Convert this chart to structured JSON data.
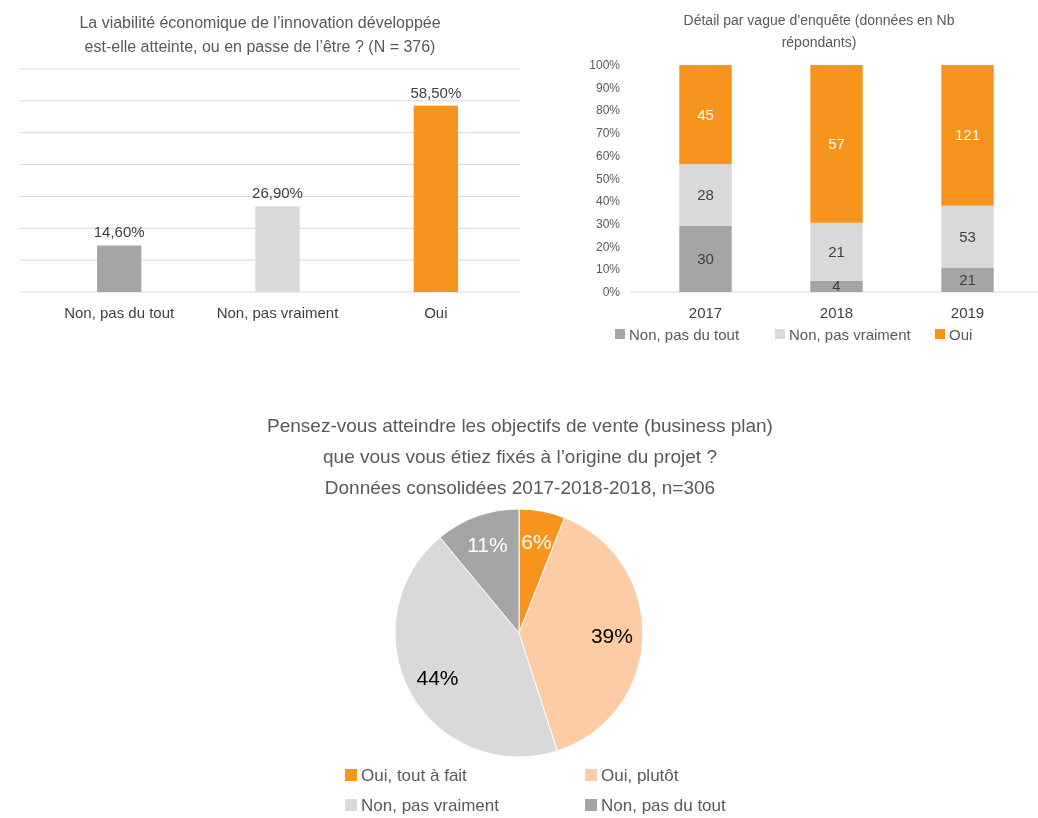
{
  "chart_data": [
    {
      "type": "bar",
      "title": "La viabilité économique de l’innovation développée\nest-elle atteinte, ou en passe de l’être ? (N = 376)",
      "categories": [
        "Non, pas du tout",
        "Non, pas vraiment",
        "Oui"
      ],
      "values": [
        14.6,
        26.9,
        58.5
      ],
      "colors": [
        "#a5a5a5",
        "#d9d9d9",
        "#f7941d"
      ],
      "value_labels": [
        "14,60%",
        "26,90%",
        "58,50%"
      ],
      "ylim": [
        0,
        70
      ],
      "yticks": [
        {
          "value": 0,
          "label": null
        },
        {
          "value": 10,
          "label": null
        },
        {
          "value": 20,
          "label": null
        },
        {
          "value": 30,
          "label": null
        },
        {
          "value": 40,
          "label": null
        },
        {
          "value": 50,
          "label": null
        },
        {
          "value": 60,
          "label": null
        },
        {
          "value": 70,
          "label": null
        }
      ],
      "tick_labels": "x",
      "grid": "y"
    },
    {
      "type": "bar",
      "stacked": true,
      "title": "Détail par vague d’enquête (données en Nb\nrépondants)",
      "categories": [
        "2017",
        "2018",
        "2019"
      ],
      "series": [
        {
          "name": "Non, pas du tout",
          "color": "#a5a5a5",
          "values": [
            29.1,
            4.9,
            10.8
          ]
        },
        {
          "name": "Non, pas vraiment",
          "color": "#d9d9d9",
          "values": [
            27.2,
            25.6,
            27.2
          ]
        },
        {
          "name": "Oui",
          "color": "#f7941d",
          "values": [
            43.7,
            69.5,
            62.0
          ]
        }
      ],
      "annotations": [
        "30",
        "28",
        "45",
        "4",
        "21",
        "57",
        "21",
        "53",
        "121"
      ],
      "ylim": [
        0,
        100
      ],
      "yticks": [
        {
          "value": 0,
          "label": "0%"
        },
        {
          "value": 10,
          "label": "10%"
        },
        {
          "value": 20,
          "label": "20%"
        },
        {
          "value": 30,
          "label": "30%"
        },
        {
          "value": 40,
          "label": "40%"
        },
        {
          "value": 50,
          "label": "50%"
        },
        {
          "value": 60,
          "label": "60%"
        },
        {
          "value": 70,
          "label": "70%"
        },
        {
          "value": 80,
          "label": "80%"
        },
        {
          "value": 90,
          "label": "90%"
        },
        {
          "value": 100,
          "label": "100%"
        }
      ],
      "legend": "bottom",
      "grid": false
    },
    {
      "type": "pie",
      "title": "Pensez-vous atteindre les objectifs de vente (business plan)\nque vous vous étiez fixés à l’origine du projet ?\nDonnées consolidées 2017-2018-2018, n=306",
      "categories": [
        "Oui, tout à fait",
        "Oui, plutôt",
        "Non, pas vraiment",
        "Non, pas du tout"
      ],
      "values": [
        6,
        39,
        44,
        11
      ],
      "colors": [
        "#f7941d",
        "#fdcba4",
        "#d9d9d9",
        "#a5a5a5"
      ],
      "value_labels": [
        "6%",
        "39%",
        "44%",
        "11%"
      ],
      "legend": "bottom"
    }
  ]
}
